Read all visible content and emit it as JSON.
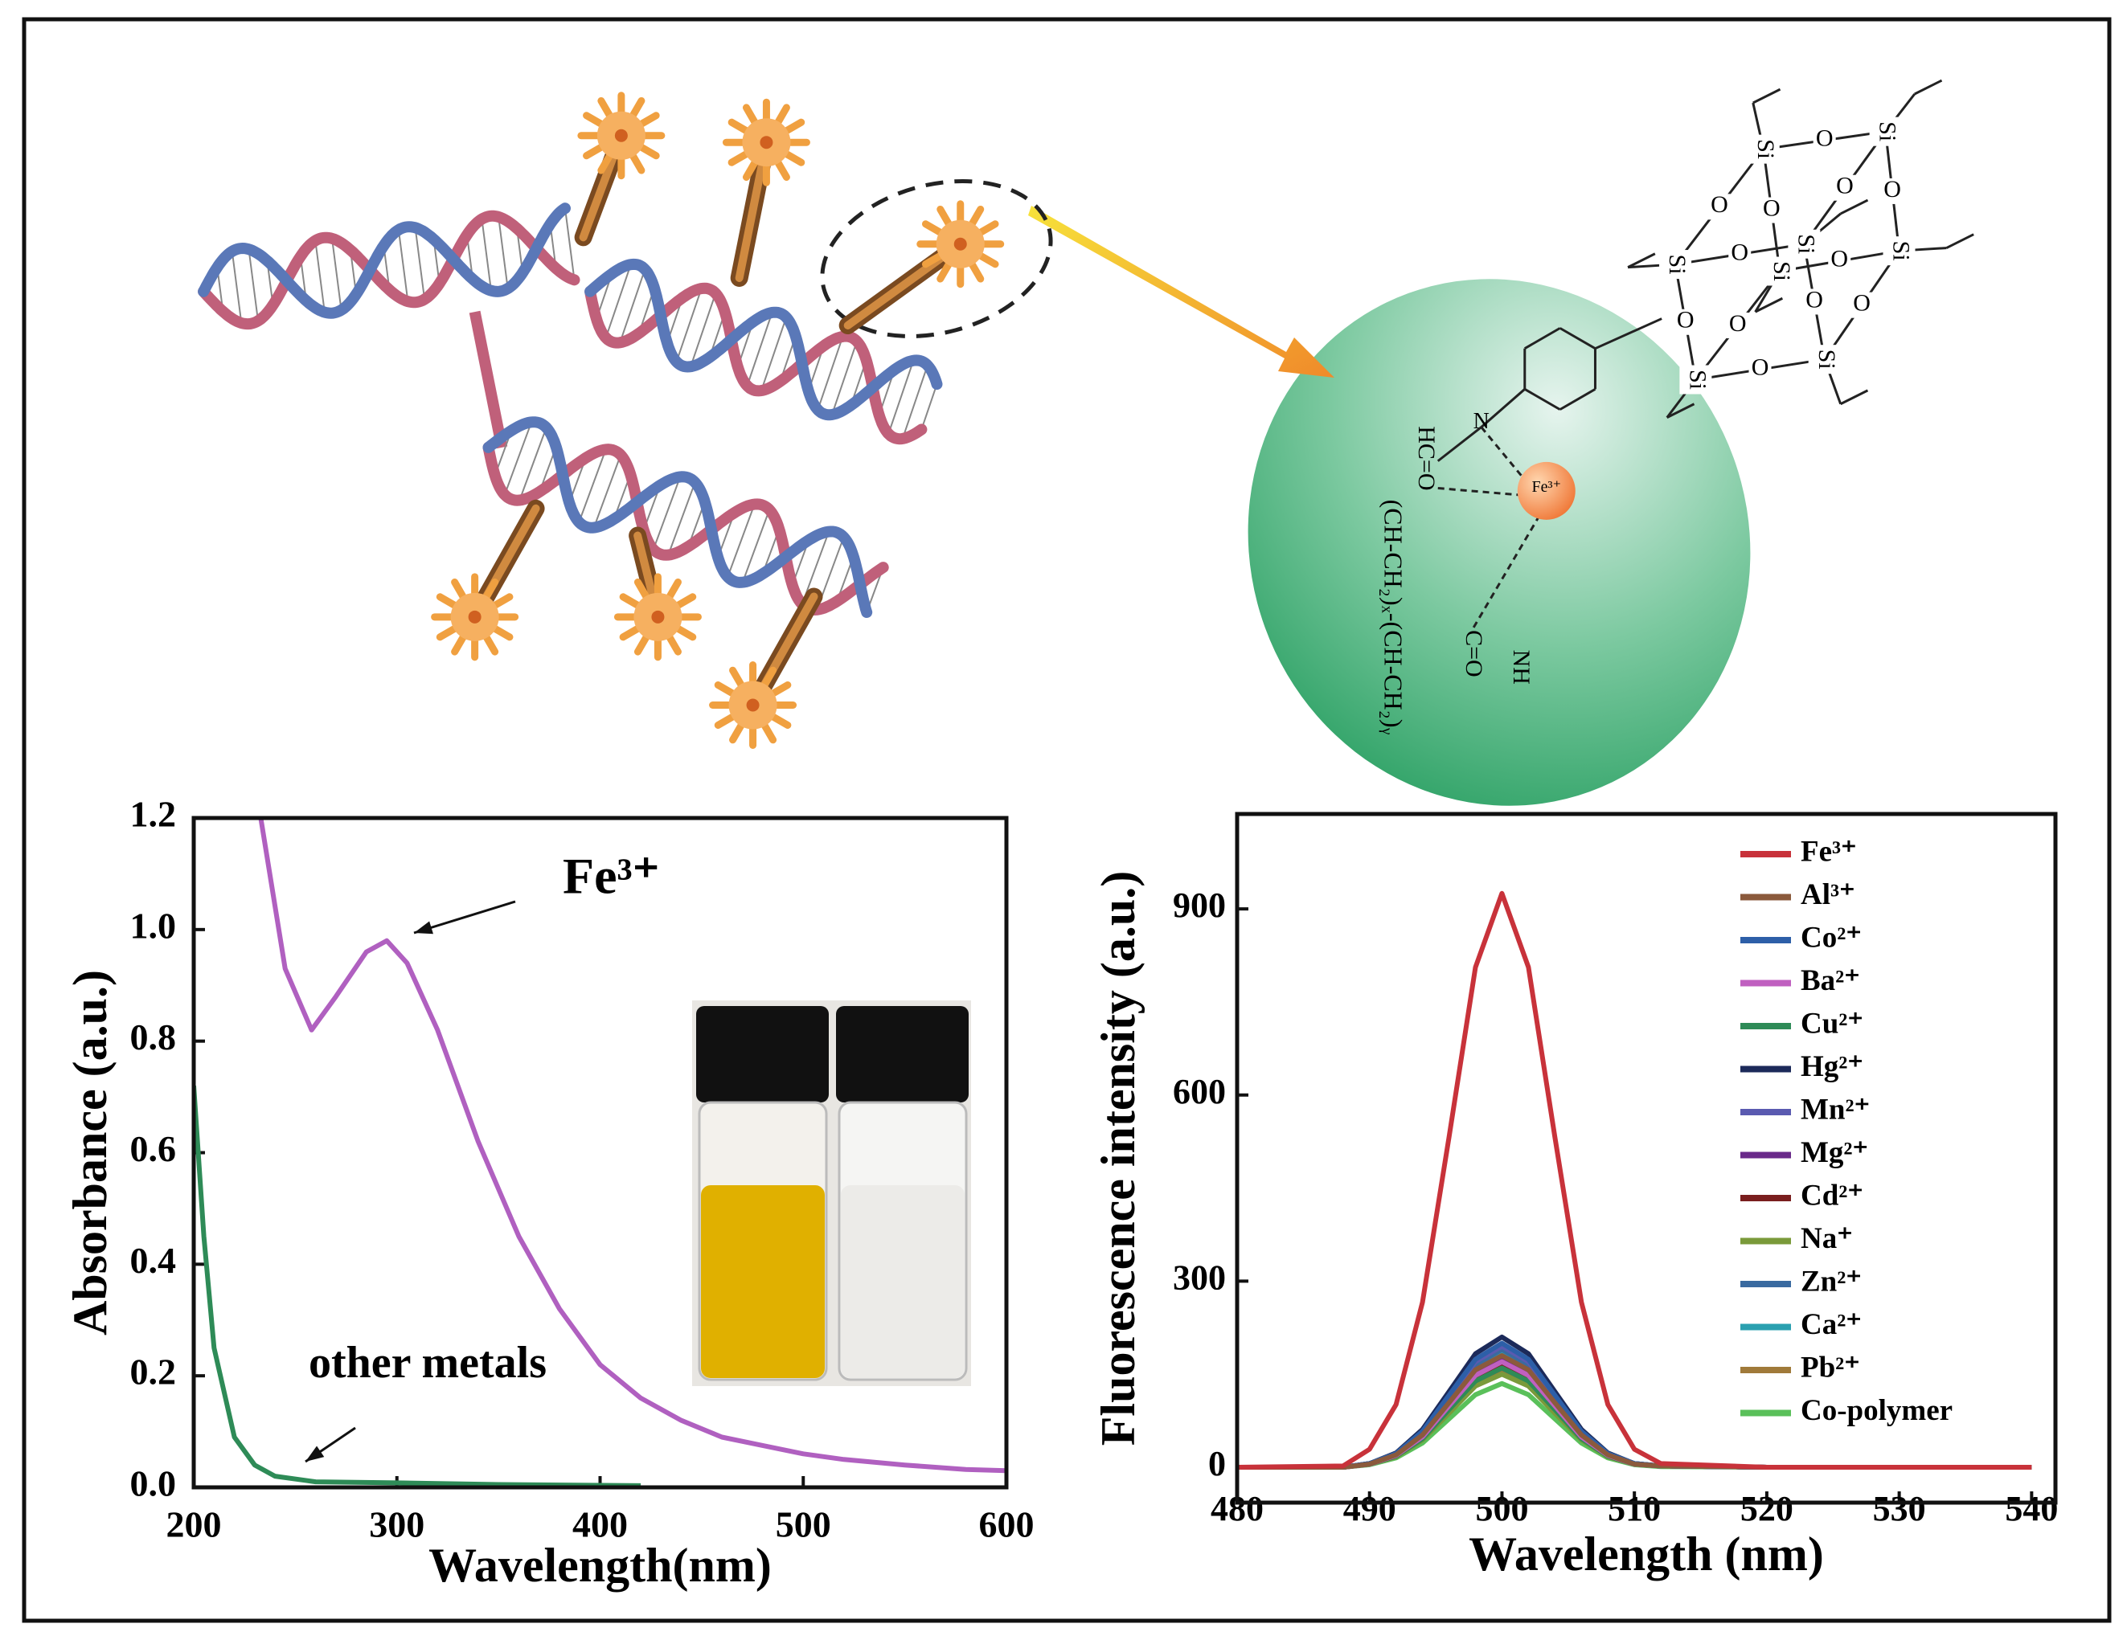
{
  "chart_data": [
    {
      "type": "line",
      "xlabel": "Wavelength(nm)",
      "ylabel": "Absorbance (a.u.)",
      "xlim": [
        200,
        600
      ],
      "ylim": [
        0,
        1.2
      ],
      "xticks": [
        200,
        300,
        400,
        500,
        600
      ],
      "yticks": [
        {
          "value": 0,
          "label": "0.0"
        },
        0.2,
        0.4,
        0.6,
        0.8,
        {
          "value": 1,
          "label": "1.0"
        },
        1.2
      ],
      "series": [
        {
          "name": "Fe³⁺",
          "color": "#b060c0",
          "x": [
            233,
            245,
            258,
            270,
            285,
            295,
            305,
            320,
            340,
            360,
            380,
            400,
            420,
            440,
            460,
            480,
            500,
            520,
            550,
            580,
            600
          ],
          "values": [
            1.2,
            0.93,
            0.82,
            0.88,
            0.96,
            0.98,
            0.94,
            0.82,
            0.62,
            0.45,
            0.32,
            0.22,
            0.16,
            0.12,
            0.09,
            0.075,
            0.06,
            0.05,
            0.04,
            0.032,
            0.03
          ]
        },
        {
          "name": "other metals",
          "color": "#2e8b57",
          "x": [
            200,
            205,
            210,
            220,
            230,
            240,
            260,
            300,
            350,
            420
          ],
          "values": [
            0.72,
            0.45,
            0.25,
            0.09,
            0.04,
            0.02,
            0.01,
            0.008,
            0.005,
            0.003
          ]
        }
      ]
    },
    {
      "type": "line",
      "xlabel": "Wavelength (nm)",
      "ylabel": "Fluorescence intensity (a.u.)",
      "xlim": [
        480,
        541.8
      ],
      "ylim": [
        -57,
        1053
      ],
      "xticks": [
        480,
        490,
        500,
        510,
        520,
        530,
        540
      ],
      "yticks": [
        0,
        300,
        600,
        900
      ],
      "legend": "upper right",
      "x": [
        480,
        488,
        490,
        492,
        494,
        496,
        498,
        500,
        502,
        504,
        506,
        508,
        510,
        512,
        520,
        540
      ],
      "series": [
        {
          "name": "Fe³⁺",
          "color": "#c8323a",
          "values": [
            0,
            2,
            29,
            101,
            266,
            532,
            806,
            925,
            806,
            532,
            266,
            101,
            29,
            6,
            0,
            0
          ]
        },
        {
          "name": "Al³⁺",
          "color": "#8b5a3c",
          "values": [
            0,
            0,
            5,
            20,
            52,
            104,
            157,
            180,
            157,
            104,
            52,
            20,
            5,
            2,
            0,
            0
          ]
        },
        {
          "name": "Co²⁺",
          "color": "#2d5fa8",
          "values": [
            0,
            0,
            6,
            22,
            58,
            116,
            174,
            200,
            174,
            116,
            58,
            22,
            6,
            2,
            0,
            0
          ]
        },
        {
          "name": "Ba²⁺",
          "color": "#c060c0",
          "values": [
            0,
            0,
            5,
            19,
            49,
            99,
            148,
            170,
            148,
            99,
            49,
            19,
            5,
            2,
            0,
            0
          ]
        },
        {
          "name": "Cu²⁺",
          "color": "#2e8b57",
          "values": [
            0,
            0,
            5,
            18,
            46,
            93,
            139,
            160,
            139,
            93,
            46,
            18,
            5,
            2,
            0,
            0
          ]
        },
        {
          "name": "Hg²⁺",
          "color": "#1c2a5a",
          "values": [
            0,
            0,
            6,
            23,
            61,
            122,
            183,
            210,
            183,
            122,
            61,
            23,
            6,
            2,
            0,
            0
          ]
        },
        {
          "name": "Mn²⁺",
          "color": "#5a5ab0",
          "values": [
            0,
            0,
            6,
            21,
            57,
            113,
            170,
            195,
            170,
            113,
            57,
            21,
            6,
            2,
            0,
            0
          ]
        },
        {
          "name": "Mg²⁺",
          "color": "#6a2a8a",
          "values": [
            0,
            0,
            5,
            19,
            51,
            102,
            152,
            175,
            152,
            102,
            51,
            19,
            5,
            2,
            0,
            0
          ]
        },
        {
          "name": "Cd²⁺",
          "color": "#7a1e1e",
          "values": [
            0,
            0,
            5,
            18,
            48,
            96,
            144,
            165,
            144,
            96,
            48,
            18,
            5,
            2,
            0,
            0
          ]
        },
        {
          "name": "Na⁺",
          "color": "#7a9a3a",
          "values": [
            0,
            0,
            5,
            17,
            44,
            87,
            131,
            150,
            131,
            87,
            44,
            17,
            5,
            2,
            0,
            0
          ]
        },
        {
          "name": "Zn²⁺",
          "color": "#3a6aa0",
          "values": [
            0,
            0,
            6,
            21,
            55,
            110,
            165,
            190,
            165,
            110,
            55,
            21,
            6,
            2,
            0,
            0
          ]
        },
        {
          "name": "Ca²⁺",
          "color": "#2aa0b0",
          "values": [
            0,
            0,
            6,
            20,
            54,
            107,
            161,
            185,
            161,
            107,
            54,
            20,
            6,
            2,
            0,
            0
          ]
        },
        {
          "name": "Pb²⁺",
          "color": "#a07a3a",
          "values": [
            0,
            0,
            5,
            17,
            45,
            90,
            135,
            155,
            135,
            90,
            45,
            17,
            5,
            2,
            0,
            0
          ]
        },
        {
          "name": "Co-polymer",
          "color": "#5ac05a",
          "values": [
            0,
            0,
            4,
            15,
            39,
            78,
            117,
            135,
            117,
            78,
            39,
            15,
            4,
            1,
            0,
            0
          ]
        }
      ]
    }
  ],
  "diagram": {
    "labels": [
      "N",
      "HC=O",
      "(CH-CH₂)ₓ-(CH-CH₂)ᵧ",
      "C=O",
      "NH",
      "Fe³⁺"
    ],
    "si": [
      "Si",
      "Si",
      "Si",
      "Si",
      "Si",
      "Si",
      "Si",
      "Si"
    ],
    "o": [
      "O",
      "O",
      "O",
      "O",
      "O",
      "O",
      "O",
      "O",
      "O",
      "O",
      "O",
      "O"
    ]
  }
}
